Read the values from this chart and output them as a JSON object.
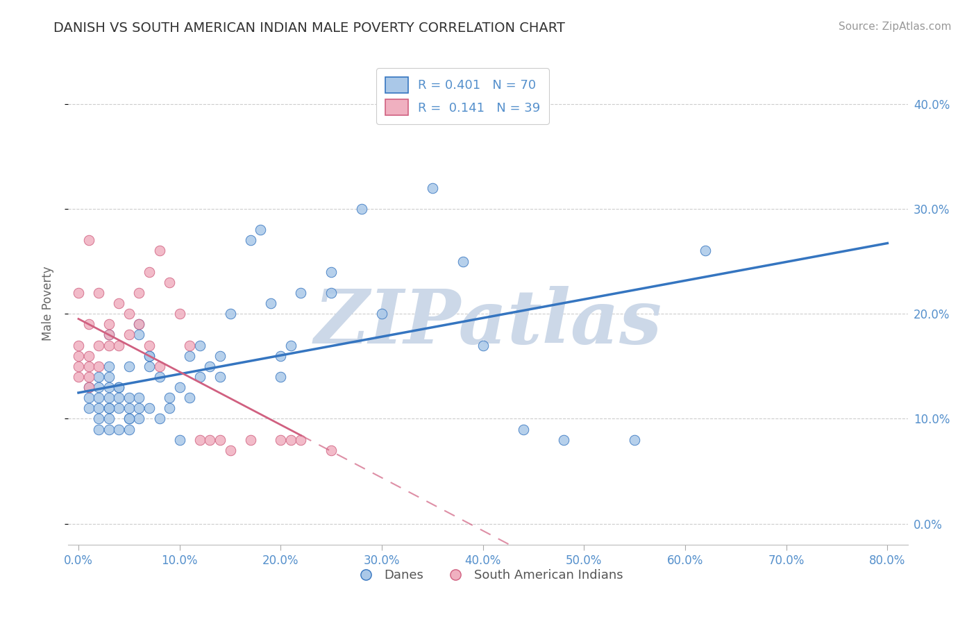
{
  "title": "DANISH VS SOUTH AMERICAN INDIAN MALE POVERTY CORRELATION CHART",
  "source": "Source: ZipAtlas.com",
  "ylabel": "Male Poverty",
  "xlabel_ticks": [
    "0.0%",
    "10.0%",
    "20.0%",
    "30.0%",
    "40.0%",
    "50.0%",
    "60.0%",
    "70.0%",
    "80.0%"
  ],
  "xlabel_vals": [
    0,
    10,
    20,
    30,
    40,
    50,
    60,
    70,
    80
  ],
  "ylabel_ticks": [
    "0.0%",
    "10.0%",
    "20.0%",
    "30.0%",
    "40.0%"
  ],
  "ylabel_vals": [
    0,
    10,
    20,
    30,
    40
  ],
  "xlim": [
    -1,
    82
  ],
  "ylim": [
    -2,
    44
  ],
  "blue_R": 0.401,
  "blue_N": 70,
  "pink_R": 0.141,
  "pink_N": 39,
  "blue_color": "#aac8e8",
  "blue_line_color": "#3575c0",
  "pink_color": "#f0b0c0",
  "pink_line_color": "#d06080",
  "watermark": "ZIPatlas",
  "watermark_color": "#ccd8e8",
  "legend_label_blue": "Danes",
  "legend_label_pink": "South American Indians",
  "title_color": "#333333",
  "source_color": "#999999",
  "tick_color": "#5590cc",
  "ylabel_color": "#666666",
  "grid_color": "#cccccc",
  "blue_x": [
    1,
    1,
    1,
    2,
    2,
    2,
    2,
    2,
    3,
    3,
    3,
    3,
    3,
    3,
    4,
    4,
    4,
    5,
    5,
    5,
    5,
    6,
    6,
    6,
    7,
    7,
    7,
    8,
    8,
    9,
    9,
    10,
    10,
    11,
    11,
    12,
    12,
    13,
    14,
    14,
    15,
    17,
    18,
    19,
    20,
    20,
    21,
    22,
    25,
    25,
    28,
    30,
    35,
    38,
    40,
    44,
    48,
    55,
    62,
    2,
    3,
    4,
    5,
    6,
    7,
    3,
    5,
    6,
    4,
    3
  ],
  "blue_y": [
    11,
    12,
    13,
    10,
    11,
    12,
    13,
    14,
    10,
    11,
    12,
    13,
    14,
    15,
    11,
    12,
    13,
    9,
    10,
    11,
    12,
    10,
    11,
    12,
    11,
    15,
    16,
    10,
    14,
    11,
    12,
    8,
    13,
    12,
    16,
    14,
    17,
    15,
    14,
    16,
    20,
    27,
    28,
    21,
    14,
    16,
    17,
    22,
    22,
    24,
    30,
    20,
    32,
    25,
    17,
    9,
    8,
    8,
    26,
    9,
    9,
    9,
    15,
    19,
    16,
    18,
    10,
    18,
    13,
    11
  ],
  "pink_x": [
    0,
    0,
    0,
    0,
    0,
    1,
    1,
    1,
    1,
    1,
    2,
    2,
    2,
    3,
    3,
    3,
    4,
    4,
    5,
    5,
    6,
    6,
    7,
    7,
    8,
    8,
    9,
    10,
    11,
    12,
    13,
    14,
    15,
    17,
    20,
    21,
    22,
    25,
    1
  ],
  "pink_y": [
    14,
    15,
    16,
    17,
    22,
    13,
    14,
    15,
    16,
    19,
    15,
    17,
    22,
    17,
    18,
    19,
    17,
    21,
    18,
    20,
    19,
    22,
    17,
    24,
    15,
    26,
    23,
    20,
    17,
    8,
    8,
    8,
    7,
    8,
    8,
    8,
    8,
    7,
    27
  ]
}
